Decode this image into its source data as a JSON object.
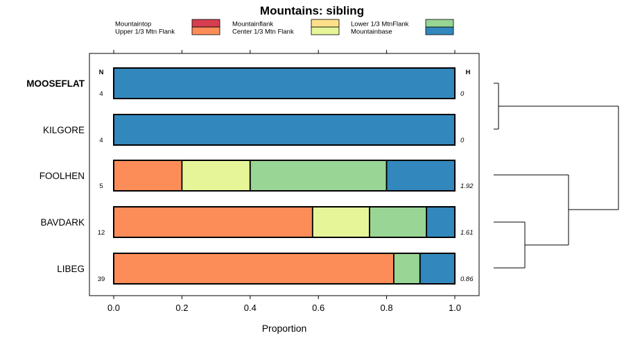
{
  "chart_data": {
    "type": "bar",
    "orientation": "horizontal",
    "stacked": true,
    "title": "Mountains: sibling",
    "xlabel": "Proportion",
    "xlim": [
      0,
      1
    ],
    "xticks": [
      "0.0",
      "0.2",
      "0.4",
      "0.6",
      "0.8",
      "1.0"
    ],
    "n_header": "N",
    "h_header": "H",
    "categories": [
      "MOOSEFLAT",
      "KILGORE",
      "FOOLHEN",
      "BAVDARK",
      "LIBEG"
    ],
    "bold_category": "MOOSEFLAT",
    "n": [
      "4",
      "4",
      "5",
      "12",
      "39"
    ],
    "h": [
      "0",
      "0",
      "1.92",
      "1.61",
      "0.86"
    ],
    "series": [
      {
        "name": "Mountaintop",
        "color": "#d53e4f",
        "values": [
          0,
          0,
          0,
          0,
          0
        ]
      },
      {
        "name": "Upper 1/3 Mtn Flank",
        "color": "#fc8d59",
        "values": [
          0,
          0,
          0.2,
          0.583,
          0.821
        ]
      },
      {
        "name": "Mountainflank",
        "color": "#fee08b",
        "values": [
          0,
          0,
          0,
          0,
          0
        ]
      },
      {
        "name": "Center 1/3 Mtn Flank",
        "color": "#e6f598",
        "values": [
          0,
          0,
          0.2,
          0.167,
          0
        ]
      },
      {
        "name": "Lower 1/3 MtnFlank",
        "color": "#99d594",
        "values": [
          0,
          0,
          0.4,
          0.167,
          0.077
        ]
      },
      {
        "name": "Mountainbase",
        "color": "#3288bd",
        "values": [
          1,
          1,
          0.2,
          0.083,
          0.102
        ]
      }
    ],
    "dendrogram": "((MOOSEFLAT,KILGORE),(FOOLHEN,(BAVDARK,LIBEG)))"
  }
}
